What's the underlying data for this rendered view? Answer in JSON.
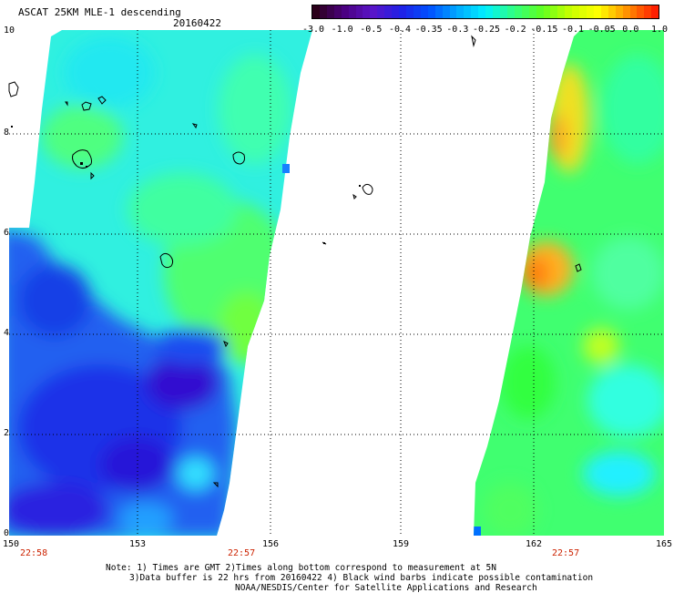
{
  "header": {
    "title": "ASCAT 25KM MLE-1 descending",
    "date": "20160422"
  },
  "colorbar": {
    "labels": [
      "-3.0",
      "-1.0",
      "-0.5",
      "-0.4",
      "-0.35",
      "-0.3",
      "-0.25",
      "-0.2",
      "-0.15",
      "-0.1",
      "-0.05",
      "0.0",
      "1.0"
    ],
    "colors": [
      "#2b001a",
      "#4b0080",
      "#5a14c8",
      "#2020e6",
      "#0050ff",
      "#00a8ff",
      "#00f0ff",
      "#30ff80",
      "#60ff20",
      "#c8ff00",
      "#ffff00",
      "#ff9000",
      "#ff2000"
    ]
  },
  "axes": {
    "y_ticks": [
      "10",
      "8",
      "6",
      "4",
      "2",
      "0"
    ],
    "x_ticks": [
      "150",
      "153",
      "156",
      "159",
      "162",
      "165"
    ]
  },
  "pass_times": [
    "22:58",
    "22:57",
    "22:57"
  ],
  "footer": {
    "line1": "Note: 1) Times are GMT 2)Times along bottom correspond to measurement at 5N",
    "line2": "3)Data buffer is 22 hrs from 20160422 4) Black wind barbs indicate possible contamination",
    "line3": "NOAA/NESDIS/Center for Satellite Applications and Research"
  }
}
